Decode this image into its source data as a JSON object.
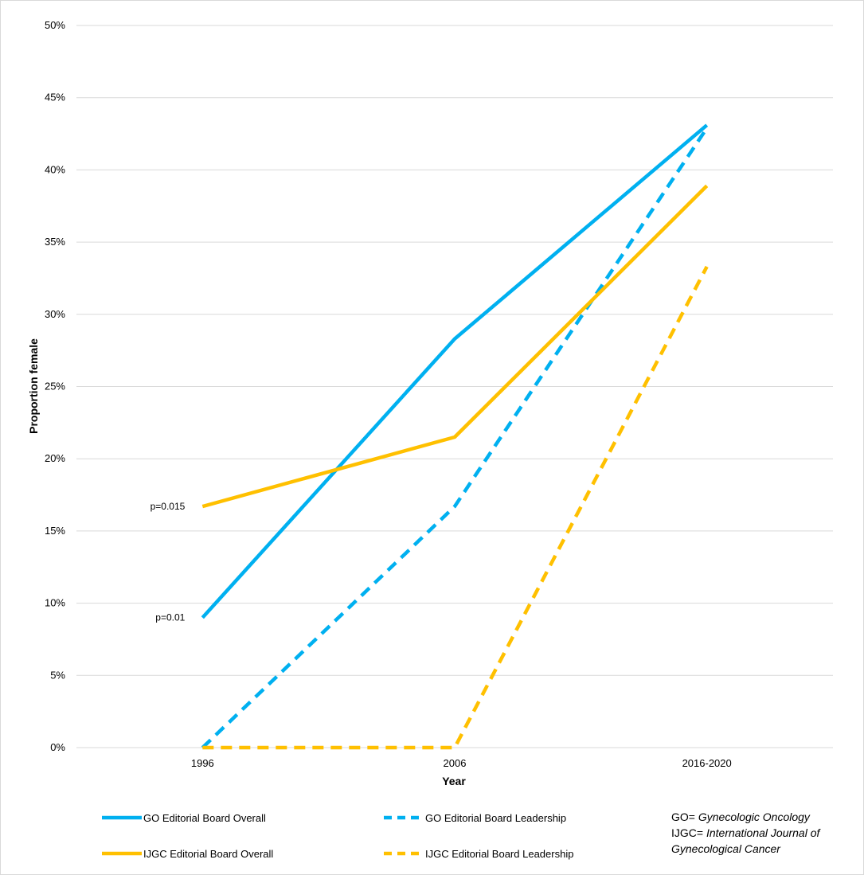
{
  "chart_data": {
    "type": "line",
    "categories": [
      "1996",
      "2006",
      "2016-2020"
    ],
    "xlabel": "Year",
    "ylabel": "Proportion female",
    "ylim": [
      0,
      50
    ],
    "y_ticks": [
      "0%",
      "5%",
      "10%",
      "15%",
      "20%",
      "25%",
      "30%",
      "35%",
      "40%",
      "45%",
      "50%"
    ],
    "grid": true,
    "legend_position": "bottom",
    "series": [
      {
        "name": "GO Editorial Board Overall",
        "values": [
          9.0,
          28.3,
          43.1
        ],
        "color": "#00b0f0",
        "dash": false
      },
      {
        "name": "GO Editorial Board Leadership",
        "values": [
          0.0,
          16.7,
          42.9
        ],
        "color": "#00b0f0",
        "dash": true
      },
      {
        "name": "IJGC Editorial Board Overall",
        "values": [
          16.7,
          21.5,
          38.9
        ],
        "color": "#ffc000",
        "dash": false
      },
      {
        "name": "IJGC Editorial Board Leadership",
        "values": [
          0.0,
          0.0,
          33.3
        ],
        "color": "#ffc000",
        "dash": true
      }
    ],
    "annotations": [
      {
        "text": "p=0.015",
        "series": 2
      },
      {
        "text": "p=0.01",
        "series": 0
      }
    ]
  },
  "legend_note": {
    "go_prefix": "GO=",
    "go_name": "Gynecologic Oncology",
    "ijgc_prefix": "IJGC=",
    "ijgc_name_line1": "International Journal of",
    "ijgc_name_line2": "Gynecological Cancer"
  },
  "colors": {
    "go": "#00b0f0",
    "ijgc": "#ffc000",
    "grid": "#d9d9d9"
  }
}
